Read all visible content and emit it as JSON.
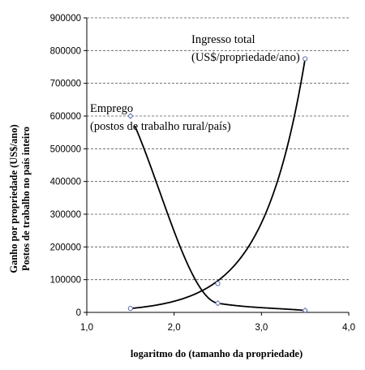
{
  "chart_data": {
    "type": "line",
    "xlabel": "logaritmo do (tamanho da propriedade)",
    "ylabel_lines": [
      "Ganho por propriedade (US$/ano)",
      "Postos de trabalho no país inteiro"
    ],
    "xlim": [
      1.0,
      4.0
    ],
    "ylim": [
      0,
      900000
    ],
    "x_ticks": [
      1.0,
      2.0,
      3.0,
      4.0
    ],
    "x_tick_labels": [
      "1,0",
      "2,0",
      "3,0",
      "4,0"
    ],
    "y_ticks": [
      0,
      100000,
      200000,
      300000,
      400000,
      500000,
      600000,
      700000,
      800000,
      900000
    ],
    "y_tick_labels": [
      "0",
      "100000",
      "200000",
      "300000",
      "400000",
      "500000",
      "600000",
      "700000",
      "800000",
      "900000"
    ],
    "grid": "horizontal-dashed",
    "legend": "none",
    "series": [
      {
        "key": "ingresso",
        "marker": "circle",
        "points": [
          {
            "x": 1.5,
            "y": 12000
          },
          {
            "x": 2.5,
            "y": 88000
          },
          {
            "x": 3.5,
            "y": 775000
          }
        ],
        "curve": "exponential",
        "curve_x_range": [
          1.5,
          3.5
        ]
      },
      {
        "key": "emprego",
        "marker": "diamond",
        "points": [
          {
            "x": 1.5,
            "y": 600000
          },
          {
            "x": 2.5,
            "y": 28000
          },
          {
            "x": 3.5,
            "y": 6000
          }
        ],
        "curve": "smooth-decay",
        "curve_x_range": [
          1.55,
          3.5
        ]
      }
    ],
    "annotations": [
      {
        "key": "ingresso",
        "lines": [
          "Ingresso total",
          "(US$/propriedade/ano)"
        ]
      },
      {
        "key": "emprego",
        "lines": [
          "Emprego",
          "(postos de trabalho rural/país)"
        ]
      }
    ],
    "colors": {
      "curve": "#000000",
      "marker": "#5b6fa8",
      "grid": "#555555"
    }
  }
}
